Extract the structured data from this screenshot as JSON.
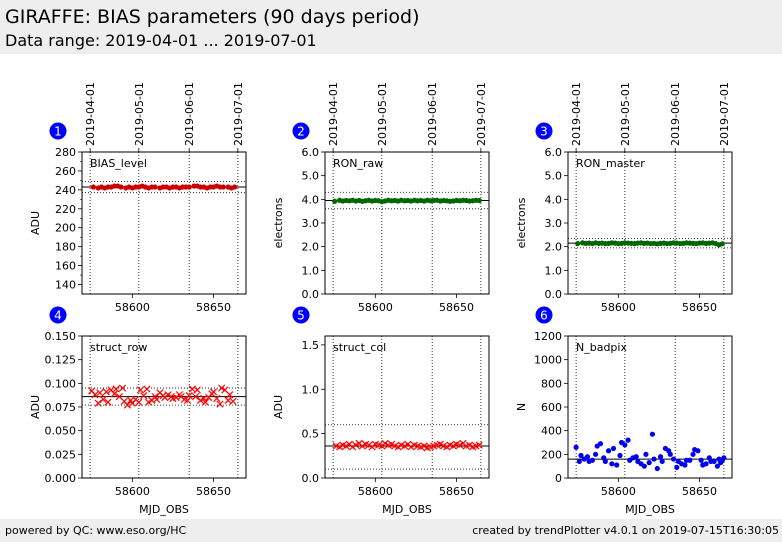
{
  "header": {
    "title": "GIRAFFE: BIAS parameters (90 days period)",
    "subtitle": "Data range: 2019-04-01 ... 2019-07-01"
  },
  "footer": {
    "left": "powered by QC: www.eso.org/HC",
    "right": "created by trendPlotter v4.0.1 on 2019-07-15T16:30:05"
  },
  "colors": {
    "header_bg": "#eeeeee",
    "badge": "#0000ff",
    "bias_level": "#cc0000",
    "ron_raw": "#006600",
    "ron_master": "#006600",
    "struct_row": "#ff0000",
    "struct_col": "#ff0000",
    "n_badpix": "#0000ee"
  },
  "chart_data": [
    {
      "type": "scatter",
      "panel": "1",
      "label": "BIAS_level",
      "xlabel": "",
      "ylabel": "ADU",
      "marker": "dot",
      "color": "#cc0000",
      "xlim": [
        58569,
        58670
      ],
      "ylim": [
        130,
        280
      ],
      "yticks": [
        140,
        160,
        180,
        200,
        220,
        240,
        260,
        280
      ],
      "yticklabels": [
        "140",
        "160",
        "180",
        "200",
        "220",
        "240",
        "260",
        "280"
      ],
      "xticks": [
        58600,
        58650
      ],
      "xticklabels": [
        "58600",
        "58650"
      ],
      "date_ticks": [
        "2019-04-01",
        "2019-05-01",
        "2019-06-01",
        "2019-07-01"
      ],
      "date_tick_mjd": [
        58574,
        58604,
        58635,
        58665
      ],
      "hlines_solid": [
        243
      ],
      "hlines_dotted": [
        237,
        249
      ],
      "x": [
        58576,
        58579,
        58581,
        58583,
        58585,
        58587,
        58589,
        58591,
        58593,
        58596,
        58598,
        58600,
        58602,
        58604,
        58606,
        58608,
        58610,
        58612,
        58614,
        58617,
        58619,
        58621,
        58623,
        58625,
        58627,
        58629,
        58631,
        58633,
        58635,
        58638,
        58640,
        58642,
        58644,
        58646,
        58648,
        58650,
        58652,
        58654,
        58656,
        58659,
        58661,
        58663
      ],
      "y": [
        243,
        242,
        243,
        242,
        243,
        243,
        244,
        244,
        243,
        242,
        243,
        242,
        243,
        243,
        244,
        243,
        242,
        243,
        243,
        242,
        243,
        243,
        242,
        243,
        243,
        242,
        243,
        243,
        243,
        244,
        244,
        243,
        243,
        242,
        243,
        243,
        244,
        243,
        243,
        243,
        242,
        243
      ]
    },
    {
      "type": "scatter",
      "panel": "2",
      "label": "RON_raw",
      "xlabel": "",
      "ylabel": "electrons",
      "marker": "dot",
      "color": "#006600",
      "xlim": [
        58569,
        58670
      ],
      "ylim": [
        0,
        6
      ],
      "yticks": [
        0,
        1,
        2,
        3,
        4,
        5,
        6
      ],
      "yticklabels": [
        "0.0",
        "1.0",
        "2.0",
        "3.0",
        "4.0",
        "5.0",
        "6.0"
      ],
      "xticks": [
        58600,
        58650
      ],
      "xticklabels": [
        "58600",
        "58650"
      ],
      "date_ticks": [
        "2019-04-01",
        "2019-05-01",
        "2019-06-01",
        "2019-07-01"
      ],
      "date_tick_mjd": [
        58574,
        58604,
        58635,
        58665
      ],
      "hlines_solid": [
        3.95
      ],
      "hlines_dotted": [
        3.6,
        4.3
      ],
      "x": [
        58575,
        58578,
        58580,
        58582,
        58584,
        58586,
        58588,
        58590,
        58592,
        58594,
        58596,
        58598,
        58600,
        58602,
        58604,
        58606,
        58608,
        58610,
        58612,
        58614,
        58616,
        58618,
        58620,
        58622,
        58624,
        58626,
        58628,
        58630,
        58632,
        58634,
        58636,
        58638,
        58640,
        58642,
        58644,
        58646,
        58648,
        58650,
        58652,
        58654,
        58656,
        58658,
        58660,
        58662,
        58664
      ],
      "y": [
        3.92,
        3.96,
        3.93,
        3.95,
        3.94,
        3.96,
        3.93,
        3.95,
        3.92,
        3.94,
        3.96,
        3.93,
        3.95,
        3.94,
        3.9,
        3.93,
        3.96,
        3.94,
        3.95,
        3.93,
        3.96,
        3.94,
        3.95,
        3.93,
        3.96,
        3.94,
        3.95,
        3.93,
        3.96,
        3.94,
        3.95,
        3.96,
        3.93,
        3.95,
        3.94,
        3.92,
        3.93,
        3.95,
        3.94,
        3.96,
        3.95,
        3.93,
        3.94,
        3.96,
        3.95
      ]
    },
    {
      "type": "scatter",
      "panel": "3",
      "label": "RON_master",
      "xlabel": "",
      "ylabel": "electrons",
      "marker": "dot",
      "color": "#006600",
      "xlim": [
        58569,
        58670
      ],
      "ylim": [
        0,
        6
      ],
      "yticks": [
        0,
        1,
        2,
        3,
        4,
        5,
        6
      ],
      "yticklabels": [
        "0.0",
        "1.0",
        "2.0",
        "3.0",
        "4.0",
        "5.0",
        "6.0"
      ],
      "xticks": [
        58600,
        58650
      ],
      "xticklabels": [
        "58600",
        "58650"
      ],
      "date_ticks": [
        "2019-04-01",
        "2019-05-01",
        "2019-06-01",
        "2019-07-01"
      ],
      "date_tick_mjd": [
        58574,
        58604,
        58635,
        58665
      ],
      "hlines_solid": [
        2.15
      ],
      "hlines_dotted": [
        1.95,
        2.35
      ],
      "x": [
        58575,
        58578,
        58580,
        58582,
        58584,
        58586,
        58588,
        58590,
        58592,
        58594,
        58596,
        58598,
        58600,
        58602,
        58604,
        58606,
        58608,
        58610,
        58612,
        58614,
        58616,
        58618,
        58620,
        58622,
        58624,
        58626,
        58628,
        58630,
        58632,
        58634,
        58636,
        58638,
        58640,
        58642,
        58644,
        58646,
        58648,
        58650,
        58652,
        58654,
        58656,
        58658,
        58660,
        58662,
        58664
      ],
      "y": [
        2.13,
        2.16,
        2.14,
        2.15,
        2.13,
        2.16,
        2.14,
        2.15,
        2.13,
        2.14,
        2.16,
        2.15,
        2.13,
        2.14,
        2.16,
        2.15,
        2.14,
        2.13,
        2.15,
        2.16,
        2.14,
        2.15,
        2.13,
        2.14,
        2.12,
        2.14,
        2.15,
        2.13,
        2.14,
        2.16,
        2.15,
        2.13,
        2.14,
        2.16,
        2.15,
        2.14,
        2.13,
        2.15,
        2.16,
        2.14,
        2.15,
        2.16,
        2.13,
        2.08,
        2.12
      ]
    },
    {
      "type": "scatter",
      "panel": "4",
      "label": "struct_row",
      "xlabel": "MJD_OBS",
      "ylabel": "ADU",
      "marker": "x",
      "color": "#ff0000",
      "xlim": [
        58569,
        58670
      ],
      "ylim": [
        0,
        0.15
      ],
      "yticks": [
        0,
        0.025,
        0.05,
        0.075,
        0.1,
        0.125,
        0.15
      ],
      "yticklabels": [
        "0.000",
        "0.025",
        "0.050",
        "0.075",
        "0.100",
        "0.125",
        "0.150"
      ],
      "xticks": [
        58600,
        58650
      ],
      "xticklabels": [
        "58600",
        "58650"
      ],
      "date_ticks": [],
      "date_tick_mjd": [
        58574,
        58604,
        58635,
        58665
      ],
      "hlines_solid": [
        0.086
      ],
      "hlines_dotted": [
        0.077,
        0.095
      ],
      "x": [
        58575,
        58577,
        58579,
        58580,
        58582,
        58584,
        58585,
        58587,
        58589,
        58590,
        58592,
        58594,
        58595,
        58597,
        58599,
        58600,
        58602,
        58604,
        58605,
        58607,
        58609,
        58610,
        58612,
        58614,
        58615,
        58617,
        58619,
        58620,
        58622,
        58624,
        58625,
        58627,
        58629,
        58630,
        58632,
        58634,
        58635,
        58637,
        58639,
        58640,
        58642,
        58644,
        58645,
        58647,
        58649,
        58650,
        58652,
        58654,
        58655,
        58657,
        58659,
        58660,
        58662
      ],
      "y": [
        0.092,
        0.088,
        0.079,
        0.09,
        0.083,
        0.091,
        0.08,
        0.093,
        0.089,
        0.094,
        0.086,
        0.095,
        0.081,
        0.077,
        0.082,
        0.079,
        0.083,
        0.08,
        0.093,
        0.087,
        0.094,
        0.08,
        0.082,
        0.086,
        0.083,
        0.09,
        0.087,
        0.085,
        0.088,
        0.086,
        0.084,
        0.085,
        0.088,
        0.086,
        0.083,
        0.082,
        0.087,
        0.094,
        0.086,
        0.093,
        0.082,
        0.084,
        0.08,
        0.085,
        0.089,
        0.091,
        0.084,
        0.078,
        0.095,
        0.093,
        0.082,
        0.088,
        0.081
      ]
    },
    {
      "type": "scatter",
      "panel": "5",
      "label": "struct_col",
      "xlabel": "MJD_OBS",
      "ylabel": "ADU",
      "marker": "x",
      "color": "#ff0000",
      "xlim": [
        58569,
        58670
      ],
      "ylim": [
        0,
        1.6
      ],
      "yticks": [
        0,
        0.5,
        1.0,
        1.5
      ],
      "yticklabels": [
        "0.0",
        "0.5",
        "1.0",
        "1.5"
      ],
      "xticks": [
        58600,
        58650
      ],
      "xticklabels": [
        "58600",
        "58650"
      ],
      "date_ticks": [],
      "date_tick_mjd": [
        58574,
        58604,
        58635,
        58665
      ],
      "hlines_solid": [
        0.36
      ],
      "hlines_dotted": [
        0.1,
        0.6
      ],
      "x": [
        58576,
        58578,
        58580,
        58582,
        58584,
        58586,
        58588,
        58590,
        58592,
        58594,
        58596,
        58598,
        58600,
        58602,
        58604,
        58606,
        58608,
        58610,
        58612,
        58614,
        58616,
        58618,
        58620,
        58622,
        58624,
        58626,
        58628,
        58630,
        58632,
        58634,
        58636,
        58638,
        58640,
        58642,
        58644,
        58646,
        58648,
        58650,
        58652,
        58654,
        58656,
        58658,
        58660,
        58662,
        58664
      ],
      "y": [
        0.36,
        0.35,
        0.37,
        0.36,
        0.38,
        0.35,
        0.37,
        0.39,
        0.36,
        0.38,
        0.37,
        0.35,
        0.38,
        0.37,
        0.36,
        0.39,
        0.37,
        0.38,
        0.36,
        0.35,
        0.37,
        0.36,
        0.38,
        0.35,
        0.37,
        0.36,
        0.35,
        0.36,
        0.34,
        0.35,
        0.36,
        0.37,
        0.38,
        0.36,
        0.35,
        0.37,
        0.36,
        0.38,
        0.37,
        0.39,
        0.36,
        0.37,
        0.35,
        0.36,
        0.37
      ]
    },
    {
      "type": "scatter",
      "panel": "6",
      "label": "N_badpix",
      "xlabel": "MJD_OBS",
      "ylabel": "N",
      "marker": "dot",
      "color": "#0000ee",
      "xlim": [
        58569,
        58670
      ],
      "ylim": [
        0,
        1200
      ],
      "yticks": [
        0,
        200,
        400,
        600,
        800,
        1000,
        1200
      ],
      "yticklabels": [
        "0",
        "200",
        "400",
        "600",
        "800",
        "1000",
        "1200"
      ],
      "xticks": [
        58600,
        58650
      ],
      "xticklabels": [
        "58600",
        "58650"
      ],
      "date_ticks": [],
      "date_tick_mjd": [
        58574,
        58604,
        58635,
        58665
      ],
      "hlines_solid": [
        160
      ],
      "hlines_dotted": [],
      "x": [
        58574,
        58576,
        58577,
        58579,
        58581,
        58582,
        58584,
        58586,
        58587,
        58589,
        58591,
        58592,
        58594,
        58596,
        58597,
        58599,
        58601,
        58602,
        58604,
        58606,
        58607,
        58609,
        58611,
        58612,
        58614,
        58616,
        58617,
        58619,
        58621,
        58622,
        58624,
        58626,
        58627,
        58629,
        58631,
        58632,
        58634,
        58636,
        58637,
        58639,
        58641,
        58642,
        58644,
        58646,
        58647,
        58649,
        58651,
        58652,
        58654,
        58656,
        58657,
        58659,
        58661,
        58662,
        58664,
        58665,
        58663
      ],
      "y": [
        260,
        140,
        190,
        160,
        180,
        140,
        150,
        200,
        270,
        290,
        170,
        140,
        230,
        120,
        250,
        110,
        190,
        300,
        280,
        320,
        150,
        170,
        180,
        140,
        120,
        100,
        200,
        130,
        370,
        160,
        80,
        180,
        140,
        250,
        230,
        200,
        160,
        90,
        140,
        120,
        110,
        150,
        150,
        200,
        240,
        230,
        150,
        110,
        120,
        170,
        140,
        140,
        100,
        160,
        150,
        170,
        130
      ]
    }
  ]
}
